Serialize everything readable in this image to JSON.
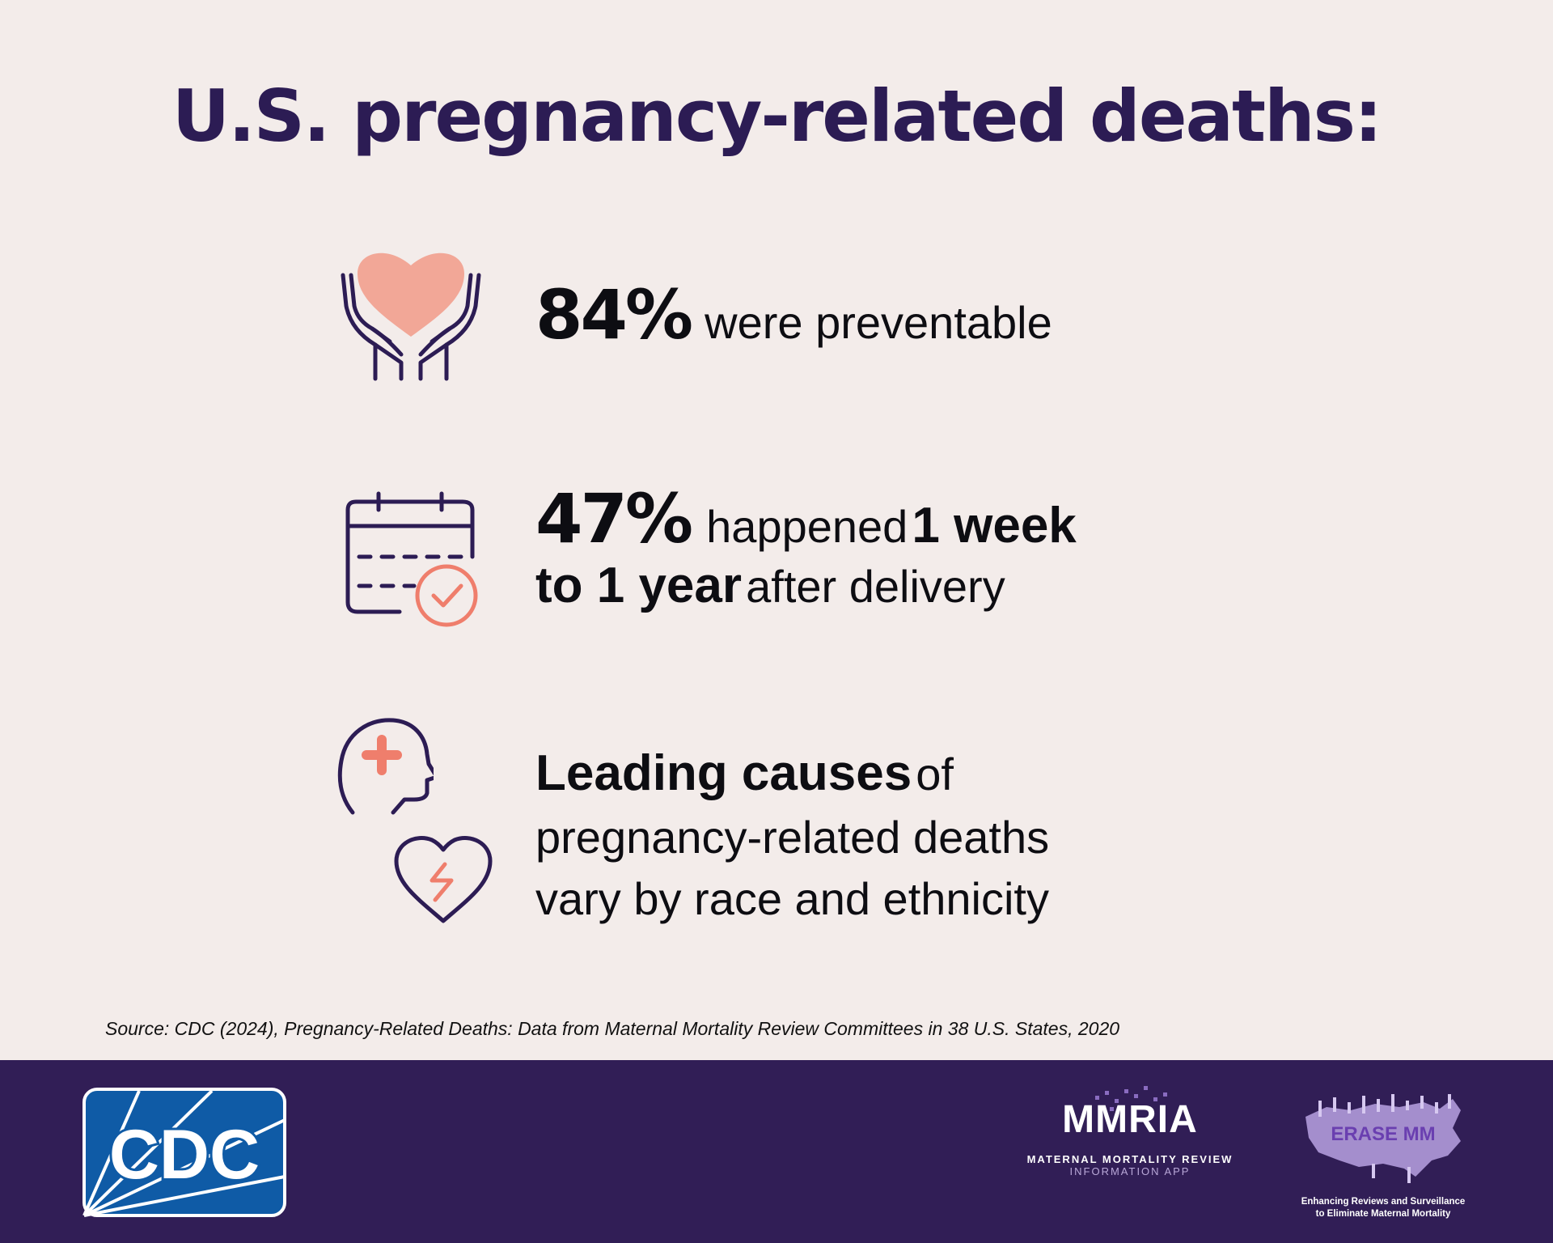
{
  "title": "U.S. pregnancy-related deaths:",
  "stats": [
    {
      "percent": "84%",
      "text": "were preventable",
      "icon": "heart-in-hands-icon"
    },
    {
      "percent": "47%",
      "text_part1": "happened",
      "bold_part1": "1 week",
      "bold_part2": "to 1 year",
      "text_part2": "after delivery",
      "icon": "calendar-check-icon"
    },
    {
      "bold": "Leading causes",
      "text_part1": "of",
      "line2": "pregnancy-related deaths",
      "line3": "vary by race and ethnicity",
      "icons": [
        "head-with-medical-cross-icon",
        "broken-heart-icon"
      ]
    }
  ],
  "source": "Source: CDC (2024), Pregnancy-Related Deaths: Data from Maternal Mortality Review Committees in 38 U.S. States, 2020",
  "footer": {
    "cdc_logo_text": "CDC",
    "mmria": {
      "logo": "MMRIA",
      "line1": "MATERNAL MORTALITY REVIEW",
      "line2": "INFORMATION APP"
    },
    "erase": {
      "logo": "ERASE MM",
      "line1": "Enhancing Reviews and Surveillance",
      "line2": "to Eliminate Maternal Mortality"
    }
  },
  "colors": {
    "background": "#f3ecea",
    "title": "#2c1c54",
    "footer": "#311e56",
    "accent_salmon": "#f2a797",
    "accent_coral": "#ef7e6c",
    "icon_stroke": "#2c1c54",
    "cdc_blue": "#0f5ba6"
  }
}
